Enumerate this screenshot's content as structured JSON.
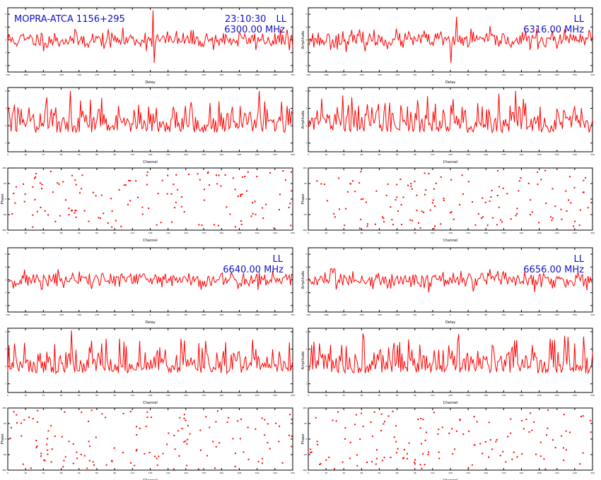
{
  "header": {
    "source": "MOPRA-ATCA 1156+295",
    "time": "23:10:30",
    "pol_a": "LL",
    "freq_a": "6300.00 MHz",
    "pol_b": "LL",
    "freq_b": "6316.00 MHz",
    "pol_c": "LL",
    "freq_c": "6640.00 MHz",
    "pol_d": "LL",
    "freq_d": "6656.00 MHz"
  },
  "colors": {
    "trace": "#ff0000",
    "annotation": "#1010c8",
    "axes": "#000000"
  },
  "chart_data": [
    {
      "type": "line",
      "panel": "delay-6300",
      "xlabel": "Delay",
      "ylabel": "",
      "xlim": [
        -320,
        320
      ],
      "ylim": [
        0.5,
        5.5
      ],
      "noise": {
        "seed": 11,
        "mean": 3.0,
        "spread": 0.35,
        "n": 256
      },
      "spikes": [
        {
          "x": 6,
          "y": 5.3
        },
        {
          "x": 8,
          "y": 1.2
        }
      ]
    },
    {
      "type": "line",
      "panel": "delay-6316",
      "xlabel": "Delay",
      "ylabel": "Amplitude",
      "xlim": [
        -320,
        320
      ],
      "ylim": [
        0.5,
        5.5
      ],
      "noise": {
        "seed": 23,
        "mean": 3.0,
        "spread": 0.35,
        "n": 256
      },
      "spikes": [
        {
          "x": 14,
          "y": 4.8
        },
        {
          "x": 1,
          "y": 1.2
        }
      ]
    },
    {
      "type": "line",
      "panel": "channel-6300",
      "xlabel": "Channel",
      "ylabel": "",
      "xlim": [
        0,
        256
      ],
      "ylim": [
        0.5,
        4.2
      ],
      "noise": {
        "seed": 37,
        "mean": 1.9,
        "spread": 0.7,
        "n": 256
      },
      "spikes": [
        {
          "x": 56,
          "y": 4.0
        },
        {
          "x": 226,
          "y": 4.0
        },
        {
          "x": 74,
          "y": 3.5
        },
        {
          "x": 190,
          "y": 3.4
        }
      ]
    },
    {
      "type": "line",
      "panel": "channel-6316",
      "xlabel": "Channel",
      "ylabel": "Amplitude",
      "xlim": [
        0,
        256
      ],
      "ylim": [
        0.5,
        4.2
      ],
      "noise": {
        "seed": 41,
        "mean": 1.9,
        "spread": 0.7,
        "n": 256
      },
      "spikes": [
        {
          "x": 36,
          "y": 3.2
        },
        {
          "x": 69,
          "y": 3.3
        },
        {
          "x": 128,
          "y": 3.2
        },
        {
          "x": 196,
          "y": 3.3
        }
      ]
    },
    {
      "type": "scatter",
      "panel": "phase-6300",
      "xlabel": "Channel",
      "ylabel": "Phase",
      "xlim": [
        0,
        256
      ],
      "ylim": [
        -180,
        180
      ],
      "noise": {
        "seed": 53,
        "n": 140
      }
    },
    {
      "type": "scatter",
      "panel": "phase-6316",
      "xlabel": "Channel",
      "ylabel": "Phase",
      "xlim": [
        0,
        256
      ],
      "ylim": [
        -180,
        180
      ],
      "noise": {
        "seed": 61,
        "n": 140
      }
    },
    {
      "type": "line",
      "panel": "delay-6640",
      "xlabel": "Delay",
      "ylabel": "",
      "xlim": [
        -320,
        320
      ],
      "ylim": [
        0.5,
        5.5
      ],
      "noise": {
        "seed": 71,
        "mean": 3.0,
        "spread": 0.35,
        "n": 256
      },
      "spikes": []
    },
    {
      "type": "line",
      "panel": "delay-6656",
      "xlabel": "Delay",
      "ylabel": "Amplitude",
      "xlim": [
        -320,
        320
      ],
      "ylim": [
        0.5,
        5.5
      ],
      "noise": {
        "seed": 83,
        "mean": 3.0,
        "spread": 0.35,
        "n": 256
      },
      "spikes": []
    },
    {
      "type": "line",
      "panel": "channel-6640",
      "xlabel": "Channel",
      "ylabel": "",
      "xlim": [
        0,
        256
      ],
      "ylim": [
        0.5,
        4.2
      ],
      "noise": {
        "seed": 97,
        "mean": 1.9,
        "spread": 0.7,
        "n": 256
      },
      "spikes": [
        {
          "x": 88,
          "y": 3.6
        },
        {
          "x": 100,
          "y": 3.6
        },
        {
          "x": 196,
          "y": 3.4
        }
      ]
    },
    {
      "type": "line",
      "panel": "channel-6656",
      "xlabel": "Channel",
      "ylabel": "Amplitude",
      "xlim": [
        0,
        256
      ],
      "ylim": [
        0.5,
        4.2
      ],
      "noise": {
        "seed": 101,
        "mean": 1.9,
        "spread": 0.7,
        "n": 256
      },
      "spikes": [
        {
          "x": 49,
          "y": 3.9
        },
        {
          "x": 82,
          "y": 3.4
        },
        {
          "x": 186,
          "y": 3.5
        },
        {
          "x": 218,
          "y": 3.6
        }
      ]
    },
    {
      "type": "scatter",
      "panel": "phase-6640",
      "xlabel": "Channel",
      "ylabel": "Phase",
      "xlim": [
        0,
        256
      ],
      "ylim": [
        -180,
        180
      ],
      "noise": {
        "seed": 113,
        "n": 140
      }
    },
    {
      "type": "scatter",
      "panel": "phase-6656",
      "xlabel": "Channel",
      "ylabel": "Phase",
      "xlim": [
        0,
        256
      ],
      "ylim": [
        -180,
        180
      ],
      "noise": {
        "seed": 127,
        "n": 140
      }
    }
  ]
}
